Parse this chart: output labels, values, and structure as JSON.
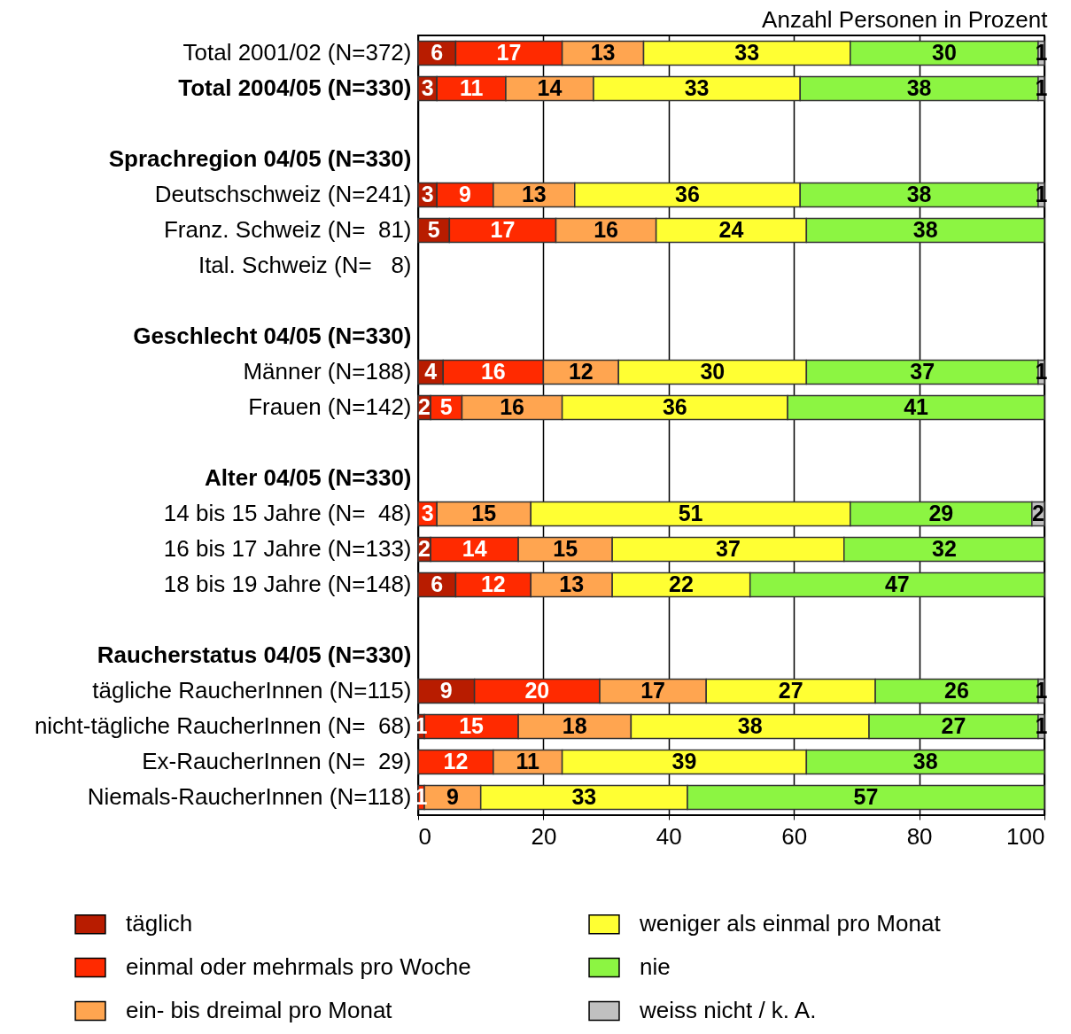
{
  "chart_data": {
    "type": "bar",
    "orientation": "horizontal",
    "stacked": true,
    "xlabel": "Anzahl Personen in Prozent",
    "categories": [
      "Total 2001/02 (N=372)",
      "Total 2004/05 (N=330)",
      null,
      "Sprachregion 04/05 (N=330)",
      "Deutschschweiz (N=241)",
      "Franz. Schweiz (N=  81)",
      "Ital. Schweiz (N=   8)",
      null,
      "Geschlecht 04/05 (N=330)",
      "Männer (N=188)",
      "Frauen (N=142)",
      null,
      "Alter 04/05 (N=330)",
      "14 bis 15 Jahre (N=  48)",
      "16 bis 17 Jahre (N=133)",
      "18 bis 19 Jahre (N=148)",
      null,
      "Raucherstatus 04/05 (N=330)",
      "tägliche RaucherInnen (N=115)",
      "nicht-tägliche RaucherInnen (N=  68)",
      "Ex-RaucherInnen (N=  29)",
      "Niemals-RaucherInnen (N=118)"
    ],
    "series": [
      {
        "name": "täglich",
        "color": "#b81c00",
        "values": [
          6,
          3,
          null,
          null,
          3,
          5,
          null,
          null,
          null,
          4,
          2,
          null,
          null,
          null,
          2,
          6,
          null,
          null,
          9,
          1,
          null,
          null
        ]
      },
      {
        "name": "einmal oder mehrmals pro Woche",
        "color": "#ff2a00",
        "values": [
          17,
          11,
          null,
          null,
          9,
          17,
          null,
          null,
          null,
          16,
          5,
          null,
          null,
          3,
          14,
          12,
          null,
          null,
          20,
          15,
          12,
          1
        ]
      },
      {
        "name": "ein- bis dreimal pro Monat",
        "color": "#ffa550",
        "values": [
          13,
          14,
          null,
          null,
          13,
          16,
          null,
          null,
          null,
          12,
          16,
          null,
          null,
          15,
          15,
          13,
          null,
          null,
          17,
          18,
          11,
          9
        ]
      },
      {
        "name": "weniger als einmal pro Monat",
        "color": "#ffff33",
        "values": [
          33,
          33,
          null,
          null,
          36,
          24,
          null,
          null,
          null,
          30,
          36,
          null,
          null,
          51,
          37,
          22,
          null,
          null,
          27,
          38,
          39,
          33
        ]
      },
      {
        "name": "nie",
        "color": "#8cf542",
        "values": [
          30,
          38,
          null,
          null,
          38,
          38,
          null,
          null,
          null,
          37,
          41,
          null,
          null,
          29,
          32,
          47,
          null,
          null,
          26,
          27,
          38,
          57
        ]
      },
      {
        "name": "weiss nicht / k. A.",
        "color": "#c0c0c0",
        "values": [
          1,
          1,
          null,
          null,
          1,
          null,
          null,
          null,
          null,
          1,
          null,
          null,
          null,
          2,
          null,
          null,
          null,
          null,
          1,
          1,
          null,
          null
        ]
      }
    ],
    "xlim": [
      0,
      100
    ],
    "xticks": [
      0,
      20,
      40,
      60,
      80,
      100
    ],
    "grid": "x",
    "data_labels": true,
    "legend": "bottom"
  }
}
